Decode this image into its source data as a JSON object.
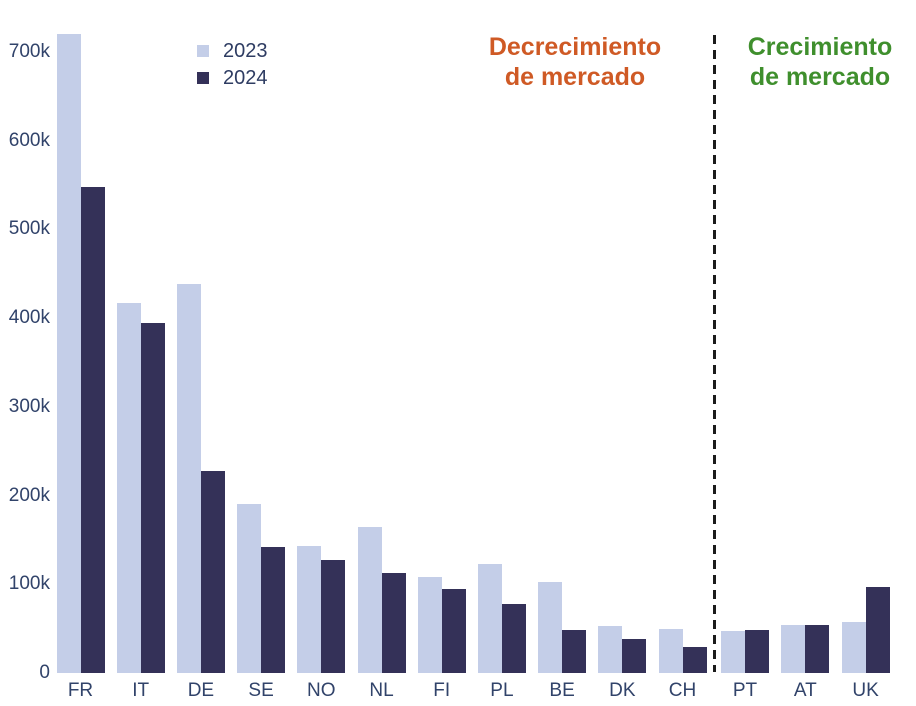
{
  "chart_data": {
    "type": "bar",
    "title": "",
    "categories": [
      "FR",
      "IT",
      "DE",
      "SE",
      "NO",
      "NL",
      "FI",
      "PL",
      "BE",
      "DK",
      "CH",
      "PT",
      "AT",
      "UK"
    ],
    "series": [
      {
        "name": "2023",
        "color": "#c4cee8",
        "values": [
          720000,
          417000,
          438000,
          190000,
          143000,
          165000,
          108000,
          123000,
          103000,
          53000,
          50000,
          47000,
          54000,
          58000
        ]
      },
      {
        "name": "2024",
        "color": "#343158",
        "values": [
          548000,
          394000,
          228000,
          142000,
          127000,
          113000,
          95000,
          78000,
          48000,
          38000,
          29000,
          48000,
          54000,
          97000
        ]
      }
    ],
    "ylim": [
      0,
      700000
    ],
    "yticks": [
      {
        "value": 0,
        "label": "0"
      },
      {
        "value": 100000,
        "label": "100k"
      },
      {
        "value": 200000,
        "label": "200k"
      },
      {
        "value": 300000,
        "label": "300k"
      },
      {
        "value": 400000,
        "label": "400k"
      },
      {
        "value": 500000,
        "label": "500k"
      },
      {
        "value": 600000,
        "label": "600k"
      },
      {
        "value": 700000,
        "label": "700k"
      }
    ],
    "grid": false,
    "axis_lines": false,
    "legend_position": "top-left",
    "divider": {
      "after_category": "CH",
      "style": "dashed",
      "color": "#1b1b1b"
    },
    "annotations": [
      {
        "lines": [
          "Decrecimiento",
          "de mercado"
        ],
        "color": "#cf5a25",
        "position": "left-of-divider"
      },
      {
        "lines": [
          "Crecimiento",
          "de mercado"
        ],
        "color": "#3f8f2d",
        "position": "right-of-divider"
      }
    ],
    "text_color": "#31436a"
  }
}
